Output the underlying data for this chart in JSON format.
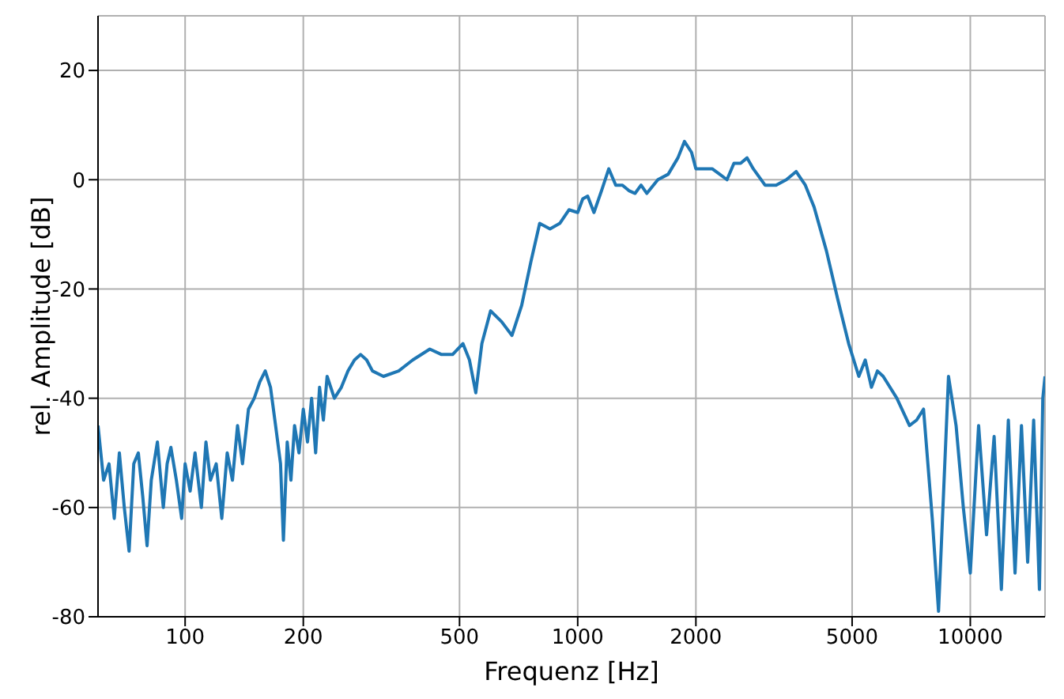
{
  "chart_data": {
    "type": "line",
    "xlabel": "Frequenz [Hz]",
    "ylabel": "rel. Amplitude [dB]",
    "log": "x",
    "grid": true,
    "marker": "none",
    "line_style": "solid",
    "xlim": [
      60,
      15500
    ],
    "ylim": [
      -80,
      30
    ],
    "xticks": [
      100,
      200,
      500,
      1000,
      2000,
      5000,
      10000
    ],
    "yticks": [
      -80,
      -60,
      -40,
      -20,
      0,
      20
    ],
    "series": [
      {
        "color": "#1f77b4",
        "x": [
          60,
          62,
          64,
          66,
          68,
          70,
          72,
          74,
          76,
          78,
          80,
          82,
          85,
          88,
          90,
          92,
          95,
          98,
          100,
          103,
          106,
          110,
          113,
          116,
          120,
          124,
          128,
          132,
          136,
          140,
          145,
          150,
          155,
          160,
          165,
          170,
          175,
          178,
          182,
          186,
          190,
          195,
          200,
          205,
          210,
          215,
          220,
          225,
          230,
          240,
          250,
          260,
          270,
          280,
          290,
          300,
          320,
          350,
          380,
          420,
          450,
          480,
          510,
          530,
          550,
          570,
          600,
          640,
          680,
          720,
          760,
          800,
          850,
          900,
          950,
          1000,
          1030,
          1060,
          1100,
          1150,
          1200,
          1250,
          1300,
          1350,
          1400,
          1450,
          1500,
          1600,
          1700,
          1800,
          1870,
          1950,
          2000,
          2100,
          2200,
          2300,
          2400,
          2500,
          2600,
          2700,
          2800,
          3000,
          3200,
          3400,
          3600,
          3800,
          4000,
          4300,
          4600,
          4900,
          5200,
          5400,
          5600,
          5800,
          6000,
          6500,
          7000,
          7300,
          7600,
          8000,
          8300,
          8800,
          9200,
          9600,
          10000,
          10500,
          11000,
          11500,
          12000,
          12500,
          13000,
          13500,
          14000,
          14500,
          15000,
          15300,
          15500
        ],
        "values": [
          -45,
          -55,
          -52,
          -62,
          -50,
          -60,
          -68,
          -52,
          -50,
          -58,
          -67,
          -55,
          -48,
          -60,
          -52,
          -49,
          -55,
          -62,
          -52,
          -57,
          -50,
          -60,
          -48,
          -55,
          -52,
          -62,
          -50,
          -55,
          -45,
          -52,
          -42,
          -40,
          -37,
          -35,
          -38,
          -45,
          -52,
          -66,
          -48,
          -55,
          -45,
          -50,
          -42,
          -48,
          -40,
          -50,
          -38,
          -44,
          -36,
          -40,
          -38,
          -35,
          -33,
          -32,
          -33,
          -35,
          -36,
          -35,
          -33,
          -31,
          -32,
          -32,
          -30,
          -33,
          -39,
          -30,
          -24,
          -26,
          -28.5,
          -23,
          -15,
          -8,
          -9,
          -8,
          -5.5,
          -6,
          -3.5,
          -3,
          -6,
          -2,
          2,
          -1,
          -1,
          -2,
          -2.5,
          -1,
          -2.5,
          0,
          1,
          4,
          7,
          5,
          2,
          2,
          2,
          1,
          0,
          3,
          3,
          4,
          2,
          -1,
          -1,
          0,
          1.5,
          -1,
          -5,
          -13,
          -22,
          -30,
          -36,
          -33,
          -38,
          -35,
          -36,
          -40,
          -45,
          -44,
          -42,
          -62,
          -79,
          -36,
          -45,
          -60,
          -72,
          -45,
          -65,
          -47,
          -75,
          -44,
          -72,
          -45,
          -70,
          -44,
          -75,
          -40,
          -36
        ]
      }
    ]
  }
}
